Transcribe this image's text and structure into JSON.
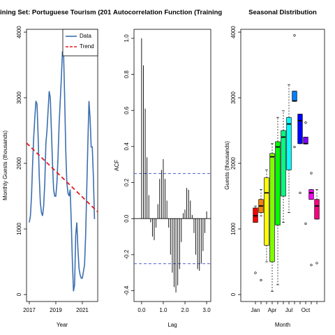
{
  "chart_data": [
    {
      "type": "line",
      "title": "ining Set: Portuguese Tourism (201",
      "xlabel": "Year",
      "ylabel": "Monthly Guests (thousands)",
      "xlim": [
        2016.79,
        2022.16
      ],
      "ylim": [
        -106,
        4043
      ],
      "xticks": [
        2017,
        2019,
        2021
      ],
      "yticks": [
        0,
        1000,
        2000,
        3000,
        4000
      ],
      "legend": "topright",
      "x": [
        2017,
        2017.083,
        2017.167,
        2017.25,
        2017.333,
        2017.417,
        2017.5,
        2017.583,
        2017.667,
        2017.75,
        2017.833,
        2017.917,
        2018,
        2018.083,
        2018.167,
        2018.25,
        2018.333,
        2018.417,
        2018.5,
        2018.583,
        2018.667,
        2018.75,
        2018.833,
        2018.917,
        2019,
        2019.083,
        2019.167,
        2019.25,
        2019.333,
        2019.417,
        2019.5,
        2019.583,
        2019.667,
        2019.75,
        2019.833,
        2019.917,
        2020,
        2020.083,
        2020.167,
        2020.25,
        2020.333,
        2020.417,
        2020.5,
        2020.583,
        2020.667,
        2020.75,
        2020.833,
        2020.917,
        2021,
        2021.083,
        2021.167,
        2021.25,
        2021.333,
        2021.417,
        2021.5,
        2021.583,
        2021.667,
        2021.75,
        2021.833,
        2021.917
      ],
      "series": [
        {
          "name": "Data",
          "color": "#3b6fb0",
          "linestyle": "solid",
          "values": [
            1100,
            1200,
            1500,
            2000,
            2400,
            2700,
            2950,
            2900,
            2400,
            1800,
            1400,
            1250,
            1200,
            1350,
            1700,
            2300,
            2500,
            2800,
            3100,
            3000,
            2500,
            2000,
            1600,
            1500,
            1500,
            1700,
            2100,
            2600,
            2950,
            3300,
            3700,
            3700,
            3000,
            2200,
            1700,
            1550,
            1500,
            1600,
            1100,
            500,
            50,
            150,
            900,
            1100,
            700,
            400,
            300,
            250,
            250,
            350,
            450,
            900,
            1600,
            2300,
            2950,
            2700,
            2250,
            2250,
            1800,
            1150
          ]
        },
        {
          "name": "Trend",
          "color": "#e41a1c",
          "linestyle": "dashed",
          "x": [
            2016.79,
            2022.16
          ],
          "values": [
            2310,
            1260
          ]
        }
      ]
    },
    {
      "type": "acf",
      "title": "Autocorrelation Function (Training",
      "xlabel": "Lag",
      "ylabel": "ACF",
      "xlim": [
        -0.35,
        3.19
      ],
      "ylim": [
        -0.46,
        1.05
      ],
      "xticks": [
        {
          "value": 0,
          "label": "0.0"
        },
        {
          "value": 1,
          "label": "1.0"
        },
        {
          "value": 2,
          "label": "2.0"
        },
        {
          "value": 3,
          "label": "3.0"
        }
      ],
      "yticks": [
        -0.4,
        -0.2,
        {
          "value": 0,
          "label": "0.0"
        },
        0.2,
        0.4,
        0.6,
        0.8,
        {
          "value": 1,
          "label": "1.0"
        }
      ],
      "color": "#000000",
      "ci": [
        0.25,
        -0.25
      ],
      "ci_color": "#4a5fd0",
      "x": [
        0,
        0.083,
        0.167,
        0.25,
        0.333,
        0.417,
        0.5,
        0.583,
        0.667,
        0.75,
        0.833,
        0.917,
        1,
        1.083,
        1.167,
        1.25,
        1.333,
        1.417,
        1.5,
        1.583,
        1.667,
        1.75,
        1.833,
        1.917,
        2,
        2.083,
        2.167,
        2.25,
        2.333,
        2.417,
        2.5,
        2.583,
        2.667,
        2.75,
        2.833,
        2.917,
        3
      ],
      "values": [
        1.0,
        0.85,
        0.61,
        0.34,
        0.13,
        -0.02,
        -0.1,
        -0.12,
        -0.05,
        0.08,
        0.22,
        0.27,
        0.33,
        0.22,
        0.1,
        -0.05,
        -0.2,
        -0.3,
        -0.38,
        -0.41,
        -0.37,
        -0.28,
        -0.13,
        0.03,
        0.05,
        0.17,
        0.16,
        0.1,
        0.02,
        -0.08,
        -0.2,
        -0.28,
        -0.29,
        -0.25,
        -0.18,
        -0.08,
        0.04
      ]
    },
    {
      "type": "box",
      "title": "Seasonal Distribution",
      "xlabel": "Month",
      "ylabel": "Guests (thousands)",
      "ylim": [
        -106,
        4043
      ],
      "yticks": [
        0,
        1000,
        2000,
        3000,
        4000
      ],
      "categories": [
        "Jan",
        null,
        null,
        "Apr",
        null,
        null,
        "Jul",
        null,
        null,
        "Oct",
        null,
        null
      ],
      "colors": [
        "#FF0000",
        "#FF8000",
        "#FFFF00",
        "#80FF00",
        "#00FF00",
        "#00FF80",
        "#00FFFF",
        "#0080FF",
        "#0000FF",
        "#8000FF",
        "#FF00FF",
        "#FF0080"
      ],
      "boxes": [
        {
          "min": 1100,
          "q1": 1100,
          "median": 1200,
          "q3": 1320,
          "max": 1350,
          "outliers": [
            330
          ]
        },
        {
          "min": 1200,
          "q1": 1250,
          "median": 1350,
          "q3": 1450,
          "max": 1600,
          "outliers": [
            220
          ]
        },
        {
          "min": 500,
          "q1": 750,
          "median": 1550,
          "q3": 1780,
          "max": 1900,
          "outliers": []
        },
        {
          "min": 50,
          "q1": 500,
          "median": 2100,
          "q3": 2150,
          "max": 2300,
          "outliers": []
        },
        {
          "min": 150,
          "q1": 1060,
          "median": 2250,
          "q3": 2330,
          "max": 2700,
          "outliers": []
        },
        {
          "min": 1100,
          "q1": 1500,
          "median": 2400,
          "q3": 2500,
          "max": 2800,
          "outliers": []
        },
        {
          "min": 1250,
          "q1": 1900,
          "median": 2600,
          "q3": 2700,
          "max": 3200,
          "outliers": []
        },
        {
          "min": 2950,
          "q1": 2950,
          "median": 2950,
          "q3": 3100,
          "max": 3100,
          "outliers": [
            3950,
            2250
          ]
        },
        {
          "min": 2300,
          "q1": 2300,
          "median": 2650,
          "q3": 2750,
          "max": 2750,
          "outliers": [
            1550
          ]
        },
        {
          "min": 2300,
          "q1": 2300,
          "median": 2300,
          "q3": 2400,
          "max": 2400,
          "outliers": [
            2620,
            1080
          ]
        },
        {
          "min": 1450,
          "q1": 1450,
          "median": 1550,
          "q3": 1600,
          "max": 1600,
          "outliers": [
            1850,
            450
          ]
        },
        {
          "min": 1150,
          "q1": 1150,
          "median": 1350,
          "q3": 1450,
          "max": 1600,
          "outliers": [
            480
          ]
        }
      ]
    }
  ]
}
